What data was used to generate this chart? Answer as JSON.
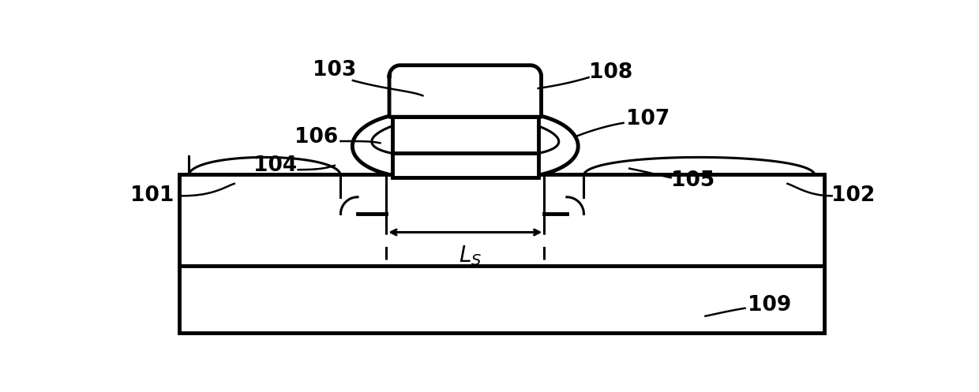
{
  "bg_color": "#ffffff",
  "lc": "#000000",
  "lw": 2.2,
  "tlw": 3.5,
  "fig_w": 12.4,
  "fig_h": 4.97,
  "label_fs": 19
}
